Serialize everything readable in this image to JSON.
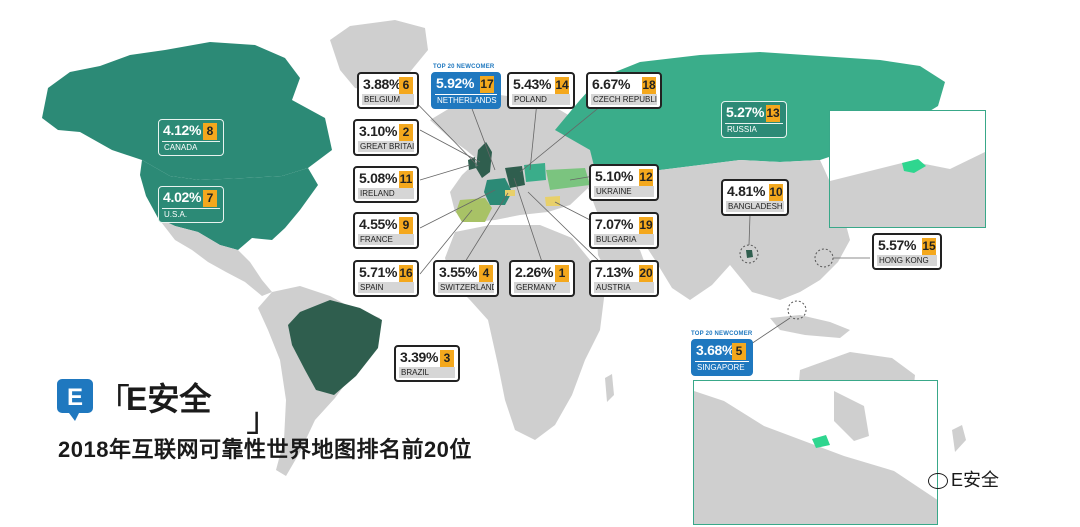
{
  "title": "2018年互联网可靠性世界地图排名前20位",
  "brand": {
    "logo_letter": "E",
    "name": "E安全",
    "bracket_open": "「",
    "bracket_close": "」"
  },
  "watermark": "E安全",
  "newcomer_tag": "TOP 20 NEWCOMER",
  "colors": {
    "land": "#cfcfcf",
    "north_america": "#2c8a76",
    "brazil": "#2f5e4e",
    "russia": "#3aad8a",
    "rank_badge": "#f4a81d",
    "newcomer_blue": "#1f78bf",
    "highlight_green": "#2fd68f"
  },
  "countries": [
    {
      "country": "CANADA",
      "percent": "4.12%",
      "rank": "8"
    },
    {
      "country": "U.S.A.",
      "percent": "4.02%",
      "rank": "7"
    },
    {
      "country": "BELGIUM",
      "percent": "3.88%",
      "rank": "6"
    },
    {
      "country": "NETHERLANDS",
      "percent": "5.92%",
      "rank": "17"
    },
    {
      "country": "POLAND",
      "percent": "5.43%",
      "rank": "14"
    },
    {
      "country": "CZECH REPUBLIC",
      "percent": "6.67%",
      "rank": "18"
    },
    {
      "country": "RUSSIA",
      "percent": "5.27%",
      "rank": "13"
    },
    {
      "country": "GREAT BRITAIN",
      "percent": "3.10%",
      "rank": "2"
    },
    {
      "country": "IRELAND",
      "percent": "5.08%",
      "rank": "11"
    },
    {
      "country": "FRANCE",
      "percent": "4.55%",
      "rank": "9"
    },
    {
      "country": "SPAIN",
      "percent": "5.71%",
      "rank": "16"
    },
    {
      "country": "SWITZERLAND",
      "percent": "3.55%",
      "rank": "4"
    },
    {
      "country": "GERMANY",
      "percent": "2.26%",
      "rank": "1"
    },
    {
      "country": "AUSTRIA",
      "percent": "7.13%",
      "rank": "20"
    },
    {
      "country": "UKRAINE",
      "percent": "5.10%",
      "rank": "12"
    },
    {
      "country": "BULGARIA",
      "percent": "7.07%",
      "rank": "19"
    },
    {
      "country": "BANGLADESH",
      "percent": "4.81%",
      "rank": "10"
    },
    {
      "country": "HONG KONG",
      "percent": "5.57%",
      "rank": "15"
    },
    {
      "country": "BRAZIL",
      "percent": "3.39%",
      "rank": "3"
    },
    {
      "country": "SINGAPORE",
      "percent": "3.68%",
      "rank": "5"
    }
  ]
}
